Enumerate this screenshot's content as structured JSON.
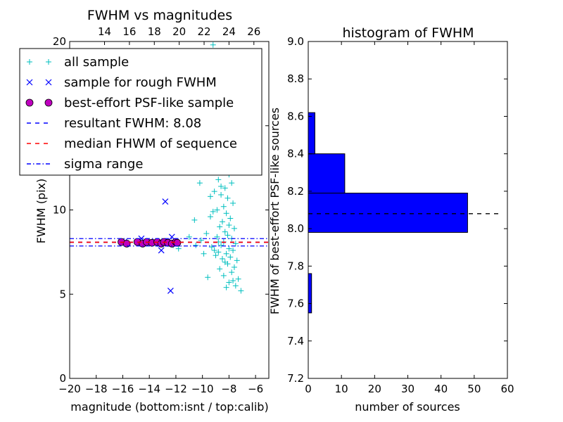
{
  "chart_data": [
    {
      "type": "scatter",
      "title": "FWHM vs magnitudes",
      "xlabel": "magnitude (bottom:isnt / top:calib)",
      "ylabel": "FWHM (pix)",
      "xlim": [
        -20,
        -5
      ],
      "ylim": [
        0,
        20
      ],
      "x_ticks": [
        -20,
        -18,
        -16,
        -14,
        -12,
        -10,
        -8,
        -6
      ],
      "x_tick_labels": [
        "−20",
        "−18",
        "−16",
        "−14",
        "−12",
        "−10",
        "−8",
        "−6"
      ],
      "y_ticks": [
        0,
        5,
        10,
        15,
        20
      ],
      "y_tick_labels": [
        "0",
        "5",
        "10",
        "15",
        "20"
      ],
      "top_axis": {
        "ticks": [
          14,
          16,
          18,
          20,
          22,
          24,
          26
        ],
        "tick_labels": [
          "14",
          "16",
          "18",
          "20",
          "22",
          "24",
          "26"
        ],
        "lim": [
          11.2,
          27.2
        ]
      },
      "legend": {
        "placement": "upper-left",
        "entries": [
          {
            "label": "all sample",
            "marker": "+",
            "color": "#00bfbf"
          },
          {
            "label": "sample for rough FWHM",
            "marker": "x",
            "color": "#0000ff"
          },
          {
            "label": "best-effort PSF-like sample",
            "marker": "o",
            "color": "#bf00bf"
          },
          {
            "label": "resultant FWHM: 8.08",
            "marker": "dashed",
            "color": "#0000ff"
          },
          {
            "label": "median FHWM of sequence",
            "marker": "dashed",
            "color": "#ff0000"
          },
          {
            "label": "sigma range",
            "marker": "dashdot",
            "color": "#0000ff"
          }
        ]
      },
      "series": [
        {
          "name": "all sample",
          "marker": "+",
          "color": "#00bfbf",
          "points": [
            [
              -9.2,
              19.8
            ],
            [
              -8.6,
              18.4
            ],
            [
              -8.3,
              16.9
            ],
            [
              -8.0,
              15.6
            ],
            [
              -8.7,
              15.1
            ],
            [
              -9.5,
              14.7
            ],
            [
              -8.1,
              14.2
            ],
            [
              -8.4,
              13.8
            ],
            [
              -9.0,
              13.4
            ],
            [
              -7.9,
              13.0
            ],
            [
              -8.5,
              12.7
            ],
            [
              -8.2,
              12.4
            ],
            [
              -9.8,
              12.6
            ],
            [
              -10.3,
              12.9
            ],
            [
              -8.0,
              12.1
            ],
            [
              -8.8,
              11.8
            ],
            [
              -7.8,
              11.6
            ],
            [
              -8.3,
              11.3
            ],
            [
              -9.1,
              11.1
            ],
            [
              -8.6,
              10.9
            ],
            [
              -8.1,
              10.7
            ],
            [
              -7.7,
              10.4
            ],
            [
              -8.4,
              10.2
            ],
            [
              -8.9,
              10.0
            ],
            [
              -8.2,
              9.8
            ],
            [
              -9.4,
              9.6
            ],
            [
              -7.9,
              9.5
            ],
            [
              -8.5,
              9.3
            ],
            [
              -8.0,
              9.1
            ],
            [
              -8.7,
              9.0
            ],
            [
              -7.6,
              8.9
            ],
            [
              -8.3,
              8.7
            ],
            [
              -9.7,
              8.6
            ],
            [
              -8.1,
              8.5
            ],
            [
              -8.9,
              8.4
            ],
            [
              -7.8,
              8.3
            ],
            [
              -10.1,
              8.2
            ],
            [
              -8.4,
              8.1
            ],
            [
              -7.5,
              8.0
            ],
            [
              -8.6,
              7.9
            ],
            [
              -9.3,
              7.8
            ],
            [
              -8.0,
              7.7
            ],
            [
              -7.7,
              7.6
            ],
            [
              -8.8,
              7.5
            ],
            [
              -8.2,
              7.4
            ],
            [
              -9.0,
              7.3
            ],
            [
              -7.9,
              7.2
            ],
            [
              -8.5,
              7.1
            ],
            [
              -7.4,
              7.0
            ],
            [
              -8.3,
              6.9
            ],
            [
              -8.1,
              6.8
            ],
            [
              -7.6,
              6.6
            ],
            [
              -8.7,
              6.5
            ],
            [
              -7.8,
              6.3
            ],
            [
              -8.4,
              6.1
            ],
            [
              -9.6,
              6.0
            ],
            [
              -7.3,
              5.9
            ],
            [
              -8.0,
              5.7
            ],
            [
              -7.5,
              5.5
            ],
            [
              -7.1,
              5.2
            ],
            [
              -8.2,
              5.4
            ],
            [
              -7.7,
              5.8
            ],
            [
              -9.9,
              7.4
            ],
            [
              -10.6,
              9.4
            ],
            [
              -11.0,
              8.4
            ],
            [
              -10.5,
              7.9
            ],
            [
              -11.8,
              7.7
            ],
            [
              -12.2,
              7.9
            ],
            [
              -9.4,
              10.8
            ],
            [
              -10.2,
              11.6
            ],
            [
              -11.3,
              13.2
            ],
            [
              -12.0,
              12.8
            ],
            [
              -8.9,
              13.9
            ],
            [
              -9.6,
              15.8
            ],
            [
              -10.7,
              14.6
            ],
            [
              -7.9,
              12.8
            ],
            [
              -8.6,
              11.4
            ],
            [
              -9.2,
              9.9
            ],
            [
              -8.8,
              8.1
            ],
            [
              -9.1,
              7.6
            ]
          ]
        },
        {
          "name": "sample for rough FWHM",
          "marker": "x",
          "color": "#0000ff",
          "points": [
            [
              -12.4,
              15.3
            ],
            [
              -12.8,
              10.5
            ],
            [
              -12.3,
              8.4
            ],
            [
              -14.6,
              8.3
            ],
            [
              -13.1,
              7.6
            ],
            [
              -12.4,
              5.2
            ],
            [
              -15.9,
              8.1
            ],
            [
              -11.9,
              8.0
            ],
            [
              -13.6,
              8.0
            ]
          ]
        },
        {
          "name": "best-effort PSF-like sample",
          "marker": "o",
          "color": "#bf00bf",
          "points": [
            [
              -16.1,
              8.1
            ],
            [
              -15.7,
              8.0
            ],
            [
              -14.9,
              8.1
            ],
            [
              -14.5,
              8.0
            ],
            [
              -14.2,
              8.1
            ],
            [
              -13.8,
              8.05
            ],
            [
              -13.4,
              8.1
            ],
            [
              -13.1,
              8.0
            ],
            [
              -12.9,
              8.1
            ],
            [
              -12.6,
              8.05
            ],
            [
              -12.3,
              8.0
            ],
            [
              -12.0,
              8.1
            ],
            [
              -11.9,
              8.05
            ]
          ]
        }
      ],
      "hlines": [
        {
          "name": "resultant FWHM",
          "y": 8.08,
          "style": "dashed",
          "color": "#0000ff"
        },
        {
          "name": "median",
          "y": 8.08,
          "style": "dashed",
          "color": "#ff0000"
        },
        {
          "name": "sigma upper",
          "y": 8.3,
          "style": "dashdot",
          "color": "#0000ff"
        },
        {
          "name": "sigma lower",
          "y": 7.86,
          "style": "dashdot",
          "color": "#0000ff"
        }
      ]
    },
    {
      "type": "bar",
      "orientation": "horizontal",
      "title": "histogram of FWHM",
      "xlabel": "number of sources",
      "ylabel": "FWHM of best-effort PSF-like sources",
      "xlim": [
        0,
        60
      ],
      "ylim": [
        7.2,
        9.0
      ],
      "x_ticks": [
        0,
        10,
        20,
        30,
        40,
        50,
        60
      ],
      "x_tick_labels": [
        "0",
        "10",
        "20",
        "30",
        "40",
        "50",
        "60"
      ],
      "y_ticks": [
        7.2,
        7.4,
        7.6,
        7.8,
        8.0,
        8.2,
        8.4,
        8.6,
        8.8,
        9.0
      ],
      "y_tick_labels": [
        "7.2",
        "7.4",
        "7.6",
        "7.8",
        "8.0",
        "8.2",
        "8.4",
        "8.6",
        "8.8",
        "9.0"
      ],
      "color": "#0000ff",
      "bins": [
        {
          "low": 7.55,
          "high": 7.76,
          "count": 1
        },
        {
          "low": 7.98,
          "high": 8.19,
          "count": 48
        },
        {
          "low": 8.19,
          "high": 8.4,
          "count": 11
        },
        {
          "low": 8.4,
          "high": 8.62,
          "count": 2
        }
      ],
      "hline": {
        "y": 8.08,
        "style": "dashed",
        "color": "#000000",
        "x_extent": [
          0,
          58
        ]
      }
    }
  ]
}
